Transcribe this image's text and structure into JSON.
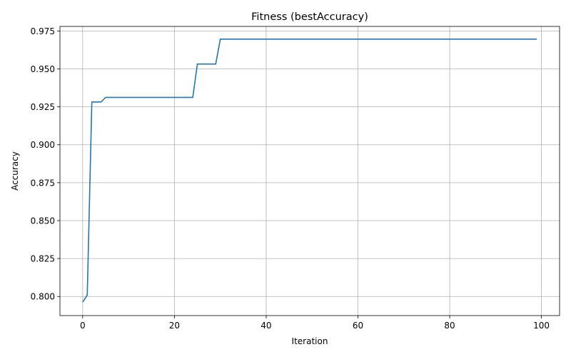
{
  "chart_data": {
    "type": "line",
    "title": "Fitness (bestAccuracy)",
    "xlabel": "Iteration",
    "ylabel": "Accuracy",
    "xlim": [
      -4.95,
      103.95
    ],
    "ylim": [
      0.7874,
      0.978
    ],
    "xticks": [
      0,
      20,
      40,
      60,
      80,
      100
    ],
    "yticks": [
      0.8,
      0.825,
      0.85,
      0.875,
      0.9,
      0.925,
      0.95,
      0.975
    ],
    "xtick_labels": [
      "0",
      "20",
      "40",
      "60",
      "80",
      "100"
    ],
    "ytick_labels": [
      "0.800",
      "0.825",
      "0.850",
      "0.875",
      "0.900",
      "0.925",
      "0.950",
      "0.975"
    ],
    "grid": true,
    "legend": false,
    "series": [
      {
        "color": "#1f77b4",
        "x": [
          0,
          1,
          2,
          4,
          5,
          24,
          25,
          29,
          30,
          99
        ],
        "y": [
          0.7963,
          0.8009,
          0.9282,
          0.9282,
          0.9312,
          0.9312,
          0.9532,
          0.9532,
          0.9696,
          0.9696
        ]
      }
    ]
  }
}
